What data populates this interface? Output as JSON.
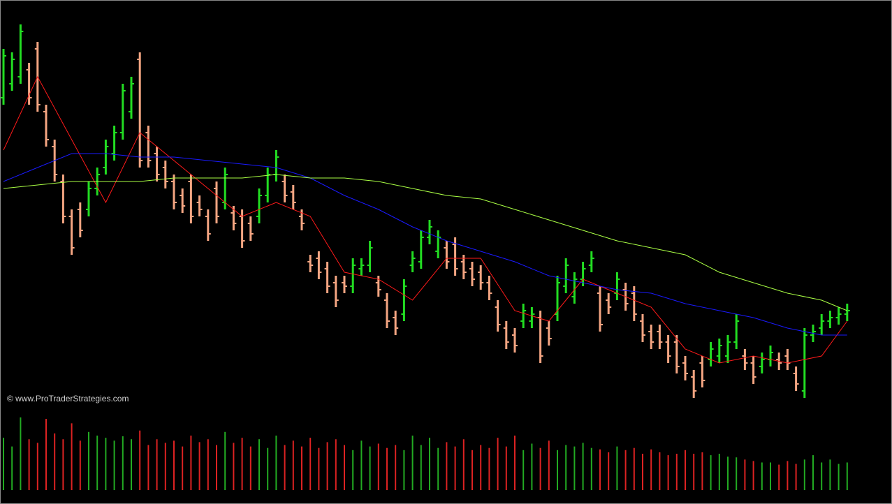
{
  "chart_data": [
    {
      "type": "ohlc",
      "annotation": "© www.ProTraderStrategies.com",
      "ylim": [
        0,
        110
      ],
      "up_color": "#22dd22",
      "down_color": "#f4a582",
      "open": [
        88,
        92,
        94,
        96,
        102,
        84,
        74,
        64,
        54,
        56,
        56,
        62,
        68,
        72,
        78,
        84,
        99,
        78,
        72,
        68,
        64,
        60,
        64,
        58,
        54,
        62,
        58,
        55,
        54,
        52,
        54,
        60,
        66,
        64,
        61,
        54,
        41,
        42,
        39,
        35,
        35,
        34,
        39,
        40,
        35,
        30,
        25,
        26,
        40,
        41,
        48,
        44,
        45,
        46,
        41,
        39,
        38,
        35,
        28,
        22,
        20,
        24,
        24,
        25,
        22,
        26,
        34,
        31,
        36,
        40,
        32,
        30,
        32,
        33,
        32,
        24,
        21,
        21,
        18,
        18,
        12,
        8,
        12,
        13,
        14,
        14,
        18,
        14,
        12,
        11,
        13,
        13,
        14,
        9,
        4,
        20,
        22,
        24,
        25,
        26
      ],
      "high": [
        102,
        101,
        109,
        98,
        104,
        86,
        76,
        66,
        56,
        58,
        64,
        68,
        76,
        80,
        92,
        94,
        101,
        80,
        74,
        70,
        66,
        62,
        66,
        60,
        56,
        64,
        68,
        57,
        56,
        54,
        62,
        68,
        73,
        66,
        63,
        56,
        43,
        44,
        41,
        37,
        37,
        42,
        42,
        47,
        37,
        32,
        27,
        36,
        44,
        50,
        53,
        50,
        47,
        48,
        43,
        41,
        40,
        37,
        30,
        24,
        22,
        29,
        28,
        27,
        24,
        37,
        42,
        38,
        41,
        44,
        34,
        32,
        38,
        35,
        34,
        26,
        23,
        23,
        20,
        20,
        14,
        10,
        14,
        18,
        19,
        20,
        26,
        16,
        14,
        15,
        17,
        15,
        16,
        11,
        22,
        23,
        26,
        27,
        28,
        29
      ],
      "low": [
        86,
        90,
        92,
        86,
        84,
        74,
        64,
        52,
        43,
        48,
        54,
        60,
        66,
        70,
        76,
        82,
        68,
        68,
        64,
        62,
        56,
        55,
        52,
        54,
        47,
        52,
        56,
        50,
        45,
        47,
        52,
        58,
        64,
        58,
        56,
        50,
        38,
        36,
        32,
        28,
        32,
        32,
        37,
        38,
        31,
        22,
        20,
        24,
        38,
        39,
        46,
        42,
        39,
        37,
        36,
        34,
        33,
        30,
        21,
        16,
        15,
        22,
        22,
        12,
        17,
        24,
        32,
        29,
        34,
        38,
        21,
        26,
        30,
        27,
        24,
        18,
        16,
        16,
        12,
        9,
        7,
        2,
        5,
        11,
        12,
        12,
        16,
        10,
        6,
        9,
        11,
        10,
        10,
        4,
        2,
        18,
        20,
        22,
        23,
        24
      ],
      "close": [
        100,
        99,
        107,
        88,
        86,
        76,
        66,
        54,
        45,
        50,
        62,
        66,
        74,
        78,
        90,
        92,
        70,
        70,
        66,
        64,
        58,
        57,
        54,
        56,
        49,
        54,
        66,
        52,
        47,
        49,
        60,
        66,
        71,
        60,
        58,
        52,
        40,
        38,
        34,
        30,
        34,
        40,
        40,
        45,
        33,
        24,
        22,
        34,
        42,
        48,
        51,
        48,
        41,
        39,
        38,
        36,
        35,
        32,
        23,
        18,
        17,
        27,
        26,
        14,
        19,
        35,
        40,
        36,
        39,
        42,
        23,
        28,
        36,
        29,
        26,
        20,
        18,
        18,
        14,
        11,
        9,
        4,
        7,
        16,
        17,
        18,
        24,
        12,
        8,
        13,
        15,
        12,
        12,
        6,
        20,
        21,
        24,
        25,
        26,
        27
      ],
      "line_x": [
        0,
        4,
        8,
        12,
        16,
        20,
        24,
        28,
        32,
        36,
        40,
        44,
        48,
        52,
        56,
        60,
        64,
        68,
        72,
        76,
        80,
        84,
        88,
        92,
        96,
        99
      ],
      "lines": [
        {
          "color": "#ff1a1a",
          "values": [
            73,
            94,
            76,
            58,
            78,
            70,
            62,
            54,
            58,
            54,
            38,
            36,
            30,
            42,
            42,
            27,
            24,
            36,
            32,
            28,
            16,
            12,
            14,
            12,
            14,
            24
          ]
        },
        {
          "color": "#1a1aff",
          "values": [
            64,
            68,
            72,
            72,
            71,
            71,
            70,
            69,
            68,
            65,
            60,
            56,
            51,
            47,
            44,
            41,
            37,
            35,
            33,
            32,
            29,
            27,
            25,
            22,
            20,
            20
          ]
        },
        {
          "color": "#aaff44",
          "values": [
            62,
            63,
            64,
            64,
            64,
            65,
            65,
            65,
            66,
            65,
            65,
            64,
            62,
            60,
            59,
            56,
            53,
            50,
            47,
            45,
            43,
            38,
            35,
            32,
            30,
            27
          ]
        }
      ]
    },
    {
      "type": "volume",
      "ylim": [
        0,
        100
      ],
      "up_color": "#22aa22",
      "down_color": "#dd2222",
      "values": [
        72,
        60,
        100,
        70,
        65,
        98,
        78,
        70,
        92,
        68,
        80,
        75,
        72,
        68,
        74,
        70,
        82,
        62,
        70,
        65,
        68,
        60,
        75,
        66,
        70,
        62,
        80,
        65,
        72,
        60,
        70,
        58,
        75,
        62,
        68,
        60,
        72,
        58,
        66,
        70,
        62,
        55,
        68,
        60,
        64,
        58,
        62,
        55,
        75,
        62,
        72,
        58,
        66,
        60,
        70,
        55,
        62,
        58,
        72,
        60,
        75,
        55,
        64,
        58,
        68,
        55,
        62,
        60,
        65,
        58,
        56,
        52,
        60,
        55,
        58,
        50,
        56,
        52,
        48,
        50,
        55,
        50,
        52,
        48,
        50,
        46,
        45,
        42,
        40,
        38,
        38,
        35,
        40,
        36,
        42,
        48,
        38,
        42,
        36,
        38
      ]
    }
  ]
}
